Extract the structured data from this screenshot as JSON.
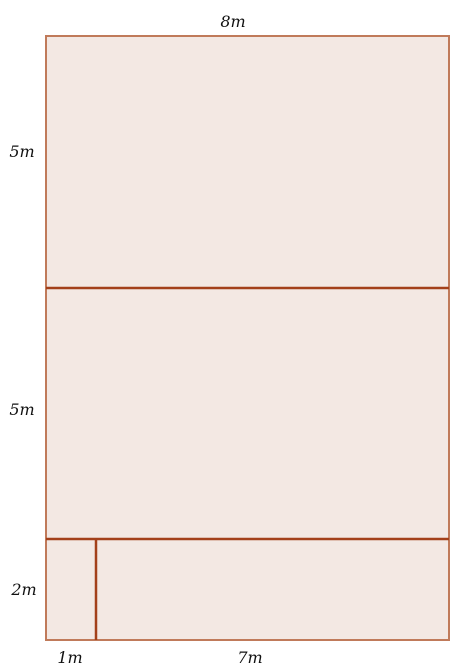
{
  "labels": {
    "top_width": "8m",
    "left_top_height": "5m",
    "left_mid_height": "5m",
    "left_bottom_height": "2m",
    "bottom_left_width": "1m",
    "bottom_right_width": "7m"
  },
  "colors": {
    "fill": "#f3e8e3",
    "outer_stroke": "#c07a5a",
    "inner_stroke": "#a3401a"
  }
}
